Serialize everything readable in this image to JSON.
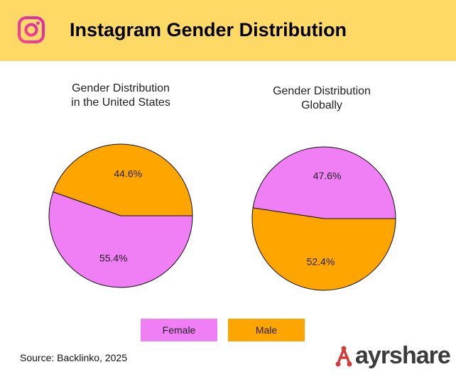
{
  "header": {
    "title": "Instagram Gender Distribution",
    "bg_color": "#ffd966",
    "icon": "instagram-icon"
  },
  "chart_data": [
    {
      "type": "pie",
      "title": "Gender Distribution\nin the United States",
      "categories": [
        "Female",
        "Male"
      ],
      "values": [
        55.4,
        44.6
      ],
      "labels": [
        "55.4%",
        "44.6%"
      ],
      "colors": [
        "#f07ff5",
        "#ffa500"
      ]
    },
    {
      "type": "pie",
      "title": "Gender Distribution\nGlobally",
      "categories": [
        "Female",
        "Male"
      ],
      "values": [
        47.6,
        52.4
      ],
      "labels": [
        "47.6%",
        "52.4%"
      ],
      "colors": [
        "#f07ff5",
        "#ffa500"
      ]
    }
  ],
  "legend": {
    "placement": "bottom-center",
    "items": [
      {
        "label": "Female",
        "color": "#f07ff5"
      },
      {
        "label": "Male",
        "color": "#ffa500"
      }
    ]
  },
  "footer": {
    "source": "Source: Backlinko, 2025",
    "brand": "ayrshare",
    "brand_color": "#d23c3c"
  }
}
